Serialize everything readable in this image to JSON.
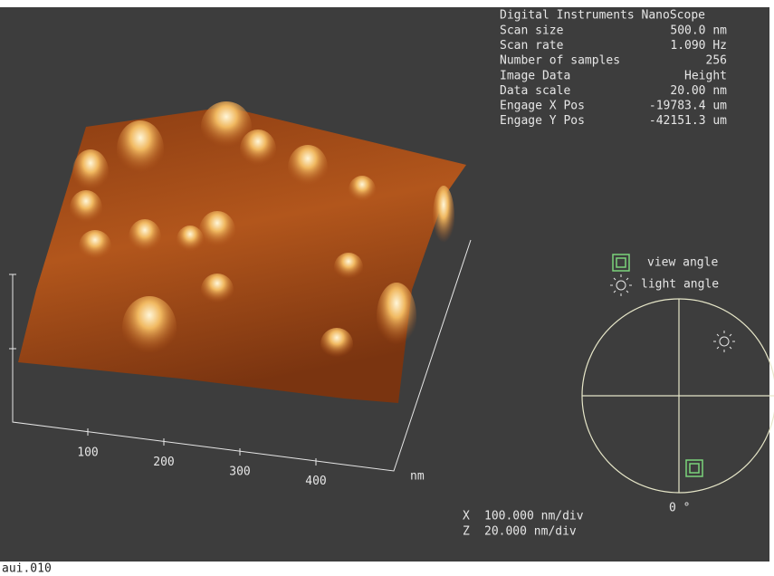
{
  "info": {
    "title": "Digital Instruments NanoScope",
    "rows": [
      [
        "Scan size",
        "500.0 nm"
      ],
      [
        "Scan rate",
        "1.090 Hz"
      ],
      [
        "Number of samples",
        "256"
      ],
      [
        "Image Data",
        "Height"
      ],
      [
        "Data scale",
        "20.00 nm"
      ],
      [
        "Engage X Pos",
        "-19783.4 um"
      ],
      [
        "Engage Y Pos",
        "-42151.3 um"
      ]
    ]
  },
  "axis": {
    "ticks": [
      "100",
      "200",
      "300",
      "400"
    ],
    "unit": "nm"
  },
  "scale": {
    "x": [
      "X",
      "100.000 nm/div"
    ],
    "z": [
      "Z",
      "20.000 nm/div"
    ]
  },
  "legend": {
    "view": "view angle",
    "light": "light angle",
    "angle": "0 °"
  },
  "file": "aui.010"
}
